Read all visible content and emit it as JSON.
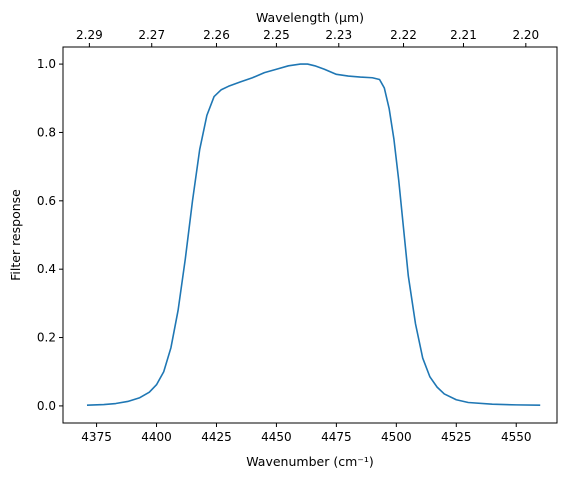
{
  "chart_data": {
    "type": "line",
    "xlabel": "Wavenumber (cm⁻¹)",
    "ylabel": "Filter response",
    "top_xlabel": "Wavelength (μm)",
    "xlim": [
      4361,
      4567
    ],
    "ylim": [
      -0.05,
      1.05
    ],
    "x_ticks": [
      4375,
      4400,
      4425,
      4450,
      4475,
      4500,
      4525,
      4550
    ],
    "x_tick_labels": [
      "4375",
      "4400",
      "4425",
      "4450",
      "4475",
      "4500",
      "4525",
      "4550"
    ],
    "y_ticks": [
      0.0,
      0.2,
      0.4,
      0.6,
      0.8,
      1.0
    ],
    "y_tick_labels": [
      "0.0",
      "0.2",
      "0.4",
      "0.6",
      "0.8",
      "1.0"
    ],
    "top_ticks": [
      {
        "wavenumber": 4372,
        "label": "2.29"
      },
      {
        "wavenumber": 4398,
        "label": "2.27"
      },
      {
        "wavenumber": 4425,
        "label": "2.26"
      },
      {
        "wavenumber": 4450,
        "label": "2.25"
      },
      {
        "wavenumber": 4476,
        "label": "2.23"
      },
      {
        "wavenumber": 4503,
        "label": "2.22"
      },
      {
        "wavenumber": 4528,
        "label": "2.21"
      },
      {
        "wavenumber": 4554,
        "label": "2.20"
      }
    ],
    "grid": false,
    "series": [
      {
        "color": "#1f77b4",
        "x": [
          4371,
          4378,
          4383,
          4388,
          4393,
          4397,
          4400,
          4403,
          4406,
          4409,
          4412,
          4415,
          4418,
          4421,
          4424,
          4427,
          4430,
          4435,
          4440,
          4445,
          4450,
          4455,
          4460,
          4463,
          4466,
          4470,
          4475,
          4480,
          4485,
          4490,
          4493,
          4495,
          4497,
          4499,
          4501,
          4503,
          4505,
          4508,
          4511,
          4514,
          4517,
          4520,
          4525,
          4530,
          4540,
          4550,
          4560
        ],
        "y": [
          0.002,
          0.004,
          0.007,
          0.013,
          0.024,
          0.04,
          0.062,
          0.1,
          0.17,
          0.28,
          0.43,
          0.6,
          0.75,
          0.85,
          0.905,
          0.925,
          0.935,
          0.948,
          0.96,
          0.975,
          0.985,
          0.995,
          1.0,
          1.0,
          0.995,
          0.985,
          0.97,
          0.965,
          0.962,
          0.96,
          0.955,
          0.93,
          0.87,
          0.78,
          0.66,
          0.52,
          0.38,
          0.24,
          0.14,
          0.085,
          0.055,
          0.035,
          0.018,
          0.01,
          0.005,
          0.003,
          0.002
        ]
      }
    ]
  }
}
